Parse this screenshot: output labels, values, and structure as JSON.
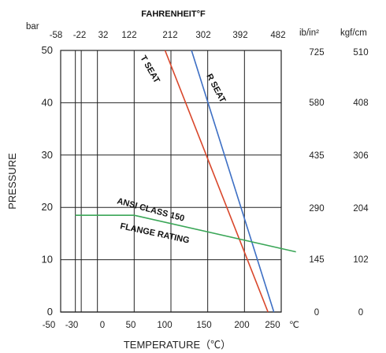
{
  "chart_data": {
    "type": "line",
    "top_axis_title": "FAHRENHEIT°F",
    "top_ticks": [
      "-58",
      "-22",
      "32",
      "122",
      "212",
      "302",
      "392",
      "482"
    ],
    "bar_unit": "bar",
    "ylabel": "PRESSURE",
    "xlabel": "TEMPERATURE（℃）",
    "x_unit": "℃",
    "xlim": [
      -50,
      250
    ],
    "ylim": [
      0,
      50
    ],
    "x_ticks": [
      "-50",
      "-30",
      "0",
      "50",
      "100",
      "150",
      "200",
      "250"
    ],
    "y_ticks": [
      "0",
      "10",
      "20",
      "30",
      "40",
      "50"
    ],
    "right_units": [
      "ib/in²",
      "kgf/cm"
    ],
    "right_lb": [
      "0",
      "145",
      "290",
      "435",
      "580",
      "725"
    ],
    "right_kgf": [
      "0",
      "102",
      "204",
      "306",
      "408",
      "510"
    ],
    "series": [
      {
        "name": "T SEAT",
        "color": "#d9472b",
        "x": [
          92,
          232
        ],
        "y": [
          50,
          0
        ]
      },
      {
        "name": "R SEAT",
        "color": "#3d6fc4",
        "x": [
          128,
          240
        ],
        "y": [
          50,
          0
        ]
      },
      {
        "name": "ANSI CLASS 150",
        "color": "#3aa657",
        "x": [
          -30,
          50,
          270
        ],
        "y": [
          18.5,
          18.5,
          11.5
        ]
      }
    ],
    "annotation_ansi": "ANSI CLASS 150",
    "annotation_flange": "FLANGE RATING"
  }
}
